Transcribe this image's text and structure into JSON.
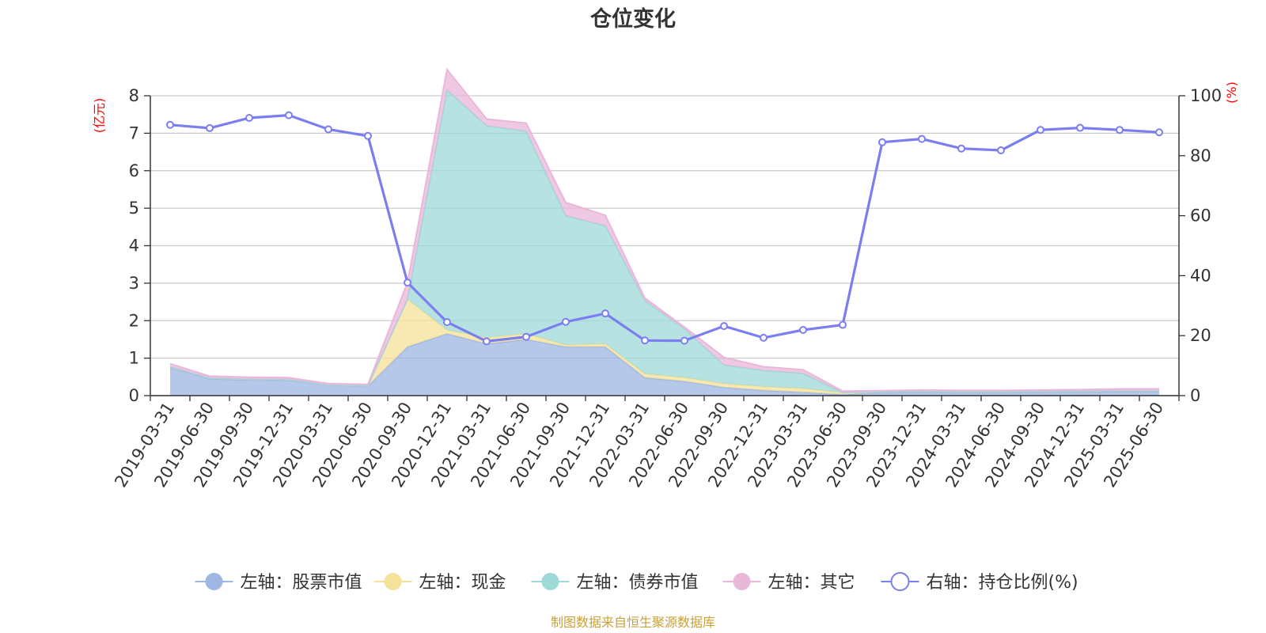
{
  "chart_data": {
    "type": "area",
    "title": "仓位变化",
    "left_axis_unit": "(亿元)",
    "right_axis_unit": "(%)",
    "ylim_left": [
      0,
      8
    ],
    "yticks_left": [
      0,
      1,
      2,
      3,
      4,
      5,
      6,
      7,
      8
    ],
    "ylim_right": [
      0,
      100
    ],
    "yticks_right": [
      0,
      20,
      40,
      60,
      80,
      100
    ],
    "grid": true,
    "legend_position": "bottom",
    "categories": [
      "2019-03-31",
      "2019-06-30",
      "2019-09-30",
      "2019-12-31",
      "2020-03-31",
      "2020-06-30",
      "2020-09-30",
      "2020-12-31",
      "2021-03-31",
      "2021-06-30",
      "2021-09-30",
      "2021-12-31",
      "2022-03-31",
      "2022-06-30",
      "2022-09-30",
      "2022-12-31",
      "2023-03-31",
      "2023-06-30",
      "2023-09-30",
      "2023-12-31",
      "2024-03-31",
      "2024-06-30",
      "2024-09-30",
      "2024-12-31",
      "2025-03-31",
      "2025-06-30"
    ],
    "stacked_series": [
      {
        "name": "左轴：股票市值",
        "axis": "left",
        "color": "#9db6e2",
        "values": [
          0.75,
          0.45,
          0.42,
          0.41,
          0.28,
          0.26,
          1.3,
          1.65,
          1.38,
          1.5,
          1.3,
          1.3,
          0.48,
          0.38,
          0.22,
          0.14,
          0.09,
          0.03,
          0.09,
          0.1,
          0.09,
          0.09,
          0.1,
          0.1,
          0.11,
          0.11
        ]
      },
      {
        "name": "左轴：现金",
        "axis": "left",
        "color": "#f5e29a",
        "values": [
          0.02,
          0.02,
          0.02,
          0.02,
          0.01,
          0.01,
          1.27,
          0.1,
          0.17,
          0.15,
          0.05,
          0.08,
          0.1,
          0.1,
          0.1,
          0.1,
          0.1,
          0.05,
          0.02,
          0.02,
          0.02,
          0.02,
          0.02,
          0.02,
          0.02,
          0.02
        ]
      },
      {
        "name": "左轴：债券市值",
        "axis": "left",
        "color": "#9ddad8",
        "values": [
          0,
          0,
          0,
          0,
          0,
          0,
          0,
          6.4,
          5.65,
          5.4,
          3.45,
          3.15,
          1.95,
          1.3,
          0.5,
          0.43,
          0.4,
          0,
          0,
          0,
          0,
          0,
          0,
          0,
          0,
          0
        ]
      },
      {
        "name": "左轴：其它",
        "axis": "left",
        "color": "#e9b7da",
        "values": [
          0.08,
          0.05,
          0.05,
          0.05,
          0.03,
          0.03,
          0.45,
          0.55,
          0.18,
          0.22,
          0.35,
          0.28,
          0.07,
          0.05,
          0.2,
          0.1,
          0.1,
          0.04,
          0.02,
          0.03,
          0.03,
          0.03,
          0.03,
          0.04,
          0.05,
          0.05
        ]
      }
    ],
    "line_series": {
      "name": "右轴：持仓比例(%)",
      "axis": "right",
      "color": "#7b7ef0",
      "values": [
        90.3,
        89.2,
        92.6,
        93.5,
        88.8,
        86.6,
        37.7,
        24.5,
        18.1,
        19.6,
        24.6,
        27.4,
        18.4,
        18.3,
        23.2,
        19.3,
        21.9,
        23.6,
        84.5,
        85.6,
        82.4,
        81.8,
        88.6,
        89.3,
        88.6,
        87.8
      ]
    },
    "source_note": "制图数据来自恒生聚源数据库"
  }
}
